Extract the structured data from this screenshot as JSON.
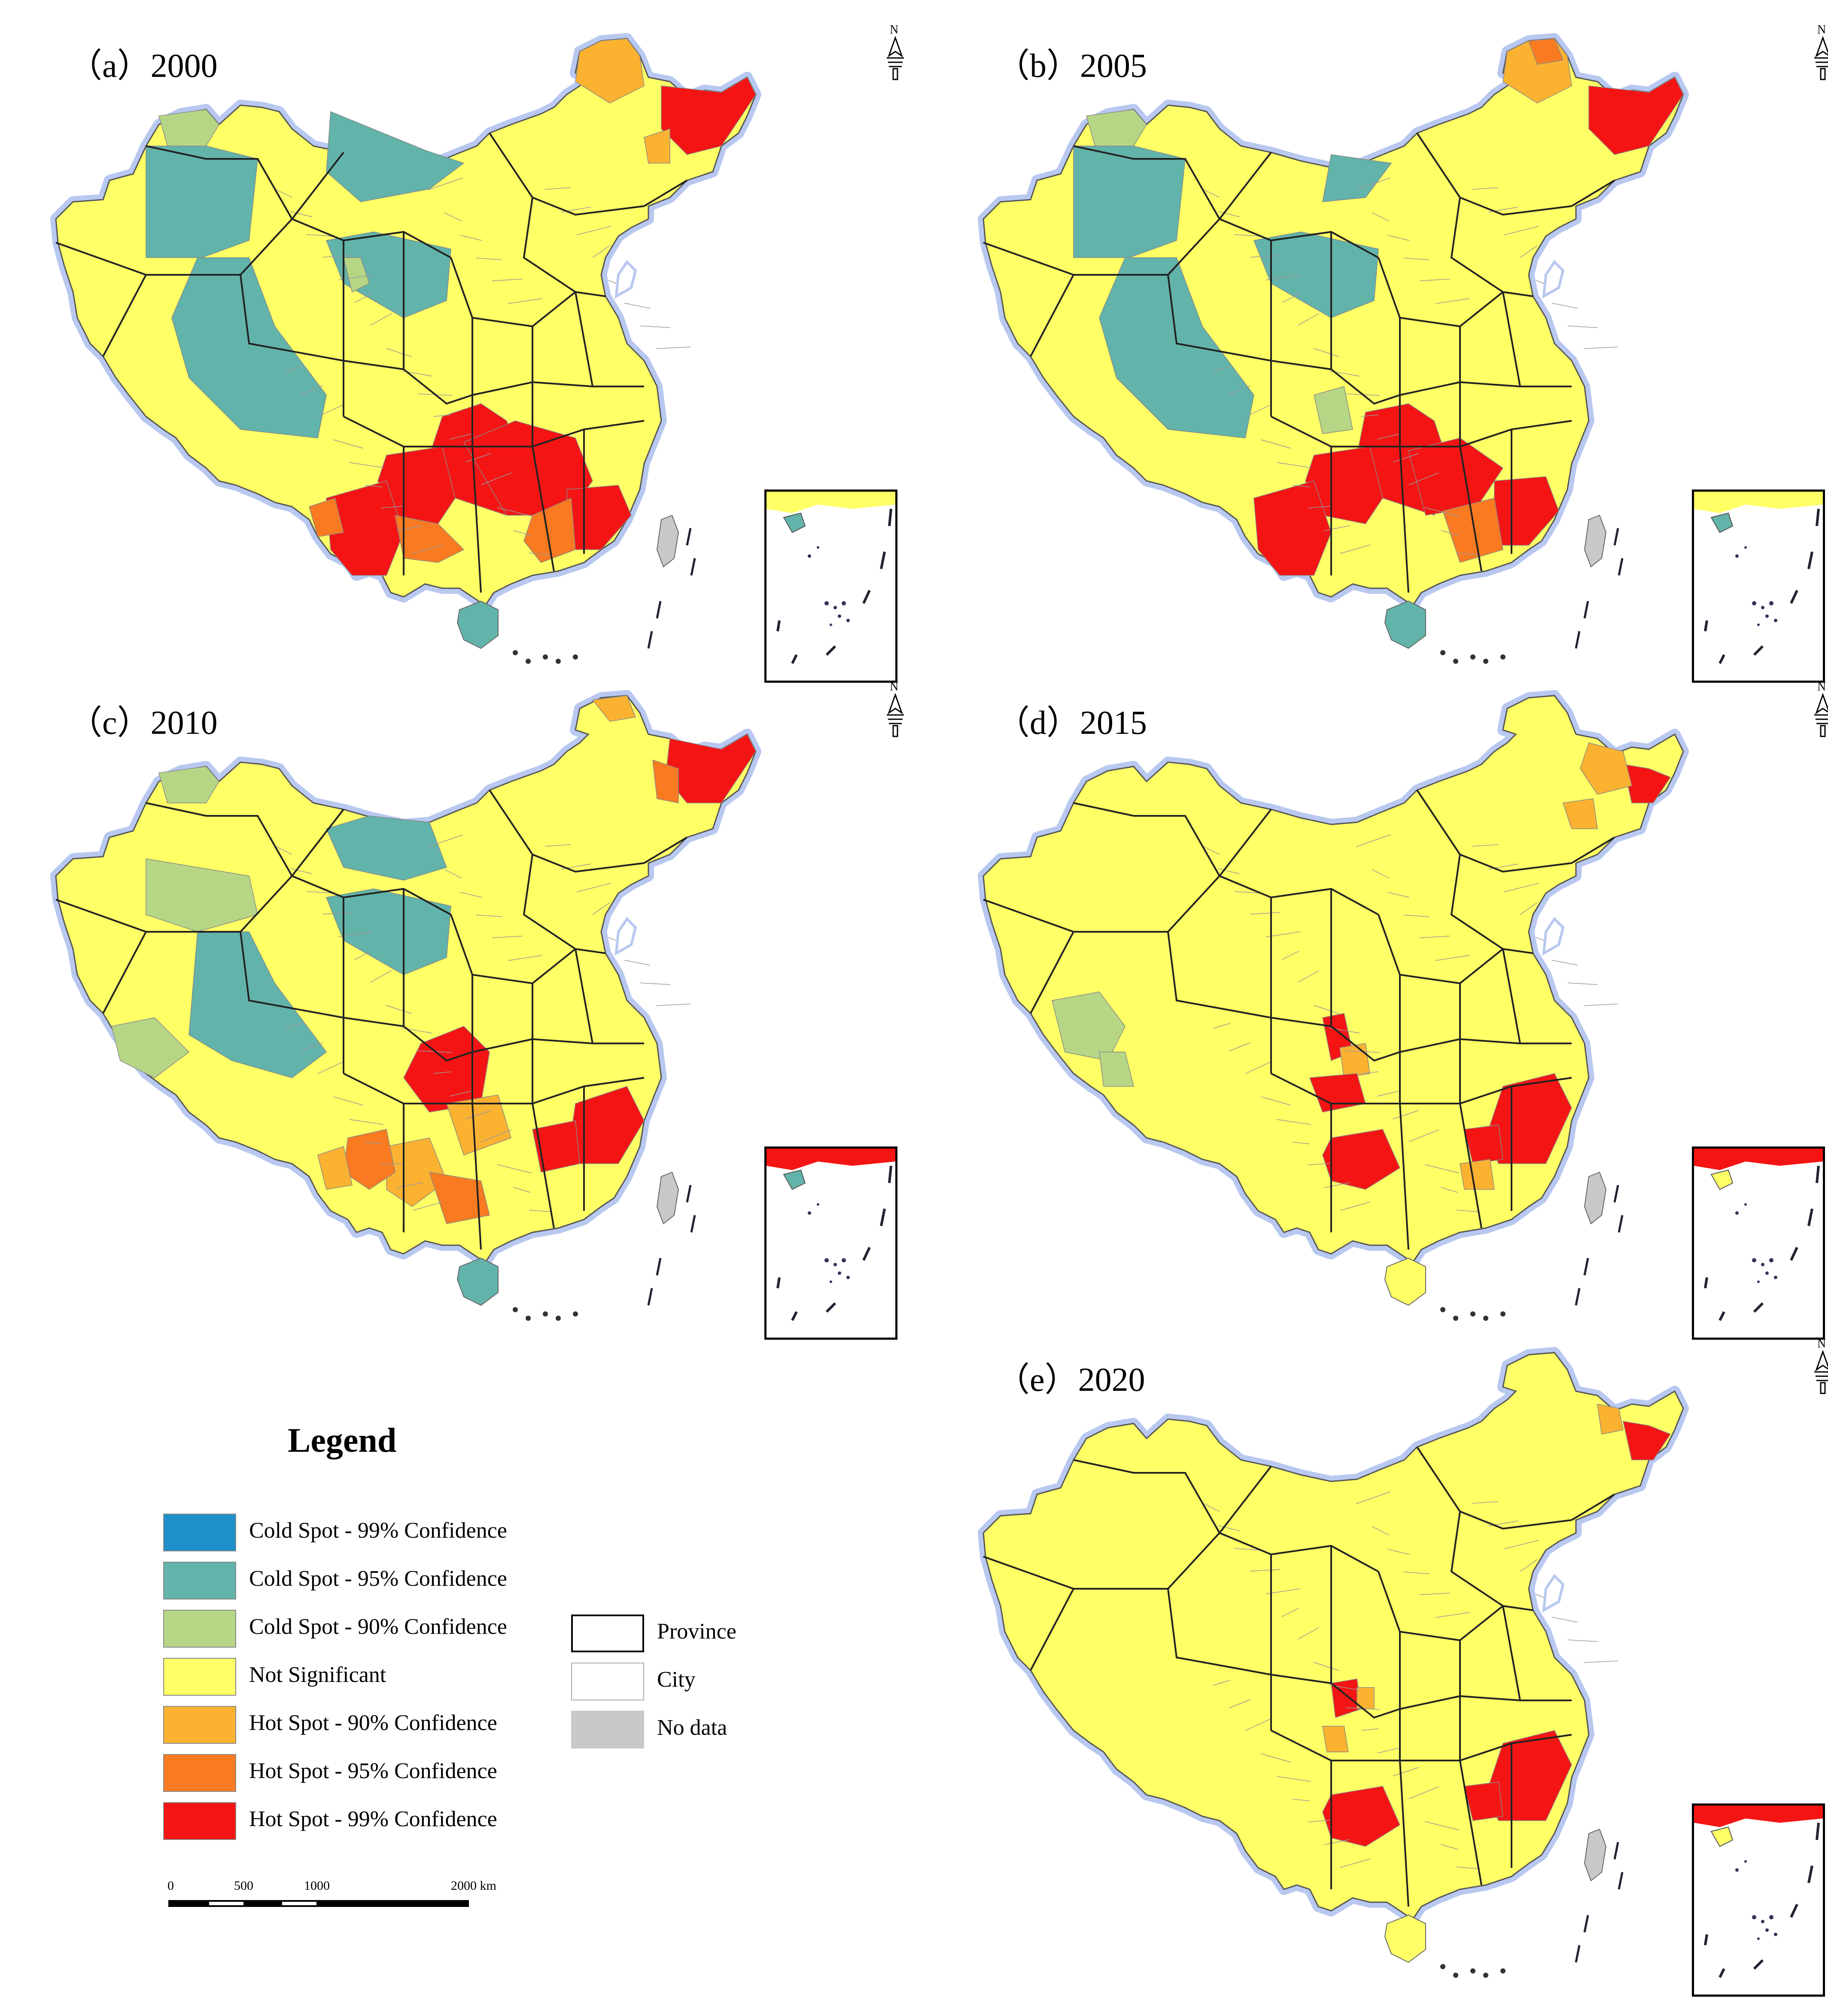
{
  "panels": [
    {
      "id": "a",
      "label": "（a）2000",
      "variant": "a"
    },
    {
      "id": "b",
      "label": "（b）2005",
      "variant": "b"
    },
    {
      "id": "c",
      "label": "（c）2010",
      "variant": "c"
    },
    {
      "id": "d",
      "label": "（d）2015",
      "variant": "d"
    },
    {
      "id": "e",
      "label": "（e）2020",
      "variant": "e"
    }
  ],
  "legend": {
    "title": "Legend",
    "classes": [
      {
        "label": "Cold Spot - 99% Confidence",
        "color": "#1f8fc9"
      },
      {
        "label": "Cold Spot - 95% Confidence",
        "color": "#62b3a9"
      },
      {
        "label": "Cold Spot - 90% Confidence",
        "color": "#b6d685"
      },
      {
        "label": "Not Significant",
        "color": "#ffff66"
      },
      {
        "label": "Hot Spot - 90% Confidence",
        "color": "#fbb231"
      },
      {
        "label": "Hot Spot - 95% Confidence",
        "color": "#f97a20"
      },
      {
        "label": "Hot Spot - 99% Confidence",
        "color": "#f51414"
      }
    ],
    "boundaries": [
      {
        "label": "Province",
        "color": "#ffffff",
        "border": "#000000"
      },
      {
        "label": "City",
        "color": "#ffffff",
        "border": "#aaaaaa"
      },
      {
        "label": "No data",
        "color": "#c8c8c8",
        "border": "#c8c8c8"
      }
    ]
  },
  "scale": {
    "ticks": [
      "0",
      "500",
      "1000",
      "2000 km"
    ]
  },
  "north_label": "N"
}
